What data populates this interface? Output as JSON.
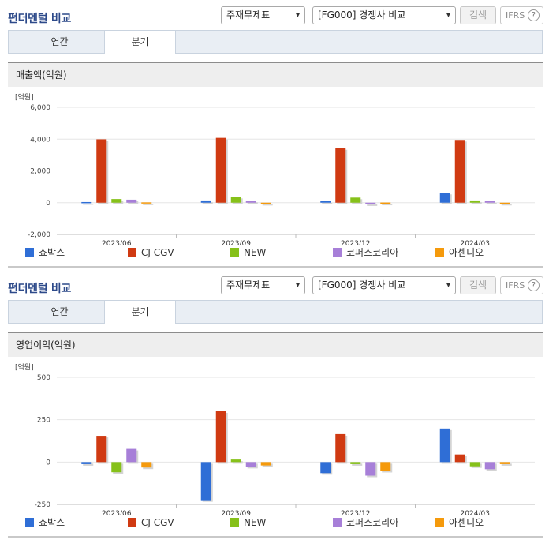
{
  "colors": {
    "series": [
      "#2f6ed6",
      "#d03a12",
      "#86c11a",
      "#a77fd8",
      "#f59a0c"
    ],
    "grid": "#e6e6e6",
    "axis": "#bcbcbc",
    "title": "#2d4a8a"
  },
  "panels": [
    {
      "title": "펀더멘털 비교",
      "select_type": "주재무제표",
      "select_compare": "[FG000] 경쟁사 비교",
      "search_label": "검색",
      "ifrs_label": "IFRS",
      "help_icon": "question-icon",
      "help_glyph": "?",
      "chevron_glyph": "▾",
      "tabs": [
        "연간",
        "분기"
      ],
      "active_tab": "분기",
      "metric_label": "매출액(억원)",
      "chart_data": {
        "type": "bar",
        "unit_label": "[억원]",
        "categories": [
          "2023/06",
          "2023/09",
          "2023/12",
          "2024/03"
        ],
        "ylim": [
          -2000,
          6000
        ],
        "yticks": [
          -2000,
          0,
          2000,
          4000,
          6000
        ],
        "ytick_labels": [
          "-2,000",
          "0",
          "2,000",
          "4,000",
          "6,000"
        ],
        "grid": true,
        "legend_position": "bottom",
        "series": [
          {
            "name": "쇼박스",
            "values": [
              40,
              140,
              90,
              620
            ]
          },
          {
            "name": "CJ CGV",
            "values": [
              3990,
              4080,
              3430,
              3950
            ]
          },
          {
            "name": "NEW",
            "values": [
              230,
              370,
              320,
              140
            ]
          },
          {
            "name": "코퍼스코리아",
            "values": [
              190,
              130,
              -110,
              90
            ]
          },
          {
            "name": "아센디오",
            "values": [
              20,
              -80,
              10,
              0
            ]
          }
        ]
      }
    },
    {
      "title": "펀더멘털 비교",
      "select_type": "주재무제표",
      "select_compare": "[FG000] 경쟁사 비교",
      "search_label": "검색",
      "ifrs_label": "IFRS",
      "help_icon": "question-icon",
      "help_glyph": "?",
      "chevron_glyph": "▾",
      "tabs": [
        "연간",
        "분기"
      ],
      "active_tab": "분기",
      "metric_label": "영업이익(억원)",
      "chart_data": {
        "type": "bar",
        "unit_label": "[억원]",
        "categories": [
          "2023/06",
          "2023/09",
          "2023/12",
          "2024/03"
        ],
        "ylim": [
          -250,
          500
        ],
        "yticks": [
          -250,
          0,
          250,
          500
        ],
        "ytick_labels": [
          "-250",
          "0",
          "250",
          "500"
        ],
        "grid": true,
        "legend_position": "bottom",
        "series": [
          {
            "name": "쇼박스",
            "values": [
              -12,
              -225,
              -65,
              198
            ]
          },
          {
            "name": "CJ CGV",
            "values": [
              155,
              300,
              165,
              45
            ]
          },
          {
            "name": "NEW",
            "values": [
              -60,
              15,
              -12,
              -25
            ]
          },
          {
            "name": "코퍼스코리아",
            "values": [
              78,
              -28,
              -80,
              -42
            ]
          },
          {
            "name": "아센디오",
            "values": [
              -32,
              -20,
              -52,
              -12
            ]
          }
        ]
      }
    }
  ]
}
